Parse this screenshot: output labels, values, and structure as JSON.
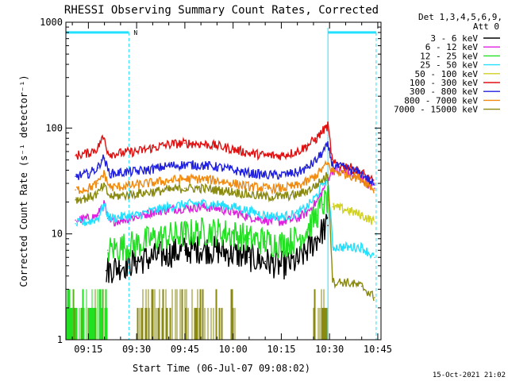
{
  "chart_data": {
    "type": "line",
    "title": "RHESSI Observing Summary Count Rates, Corrected",
    "xlabel": "Start Time (06-Jul-07 09:08:02)",
    "ylabel": "Corrected Count Rate (s⁻¹ detector⁻¹)",
    "y_scale": "log",
    "ylim": [
      1,
      1000
    ],
    "xlim_minutes_after_0900": [
      8.0,
      106.0
    ],
    "x_ticks": [
      {
        "label": "09:15",
        "minute": 15
      },
      {
        "label": "09:30",
        "minute": 30
      },
      {
        "label": "09:45",
        "minute": 45
      },
      {
        "label": "10:00",
        "minute": 60
      },
      {
        "label": "10:15",
        "minute": 75
      },
      {
        "label": "10:30",
        "minute": 90
      },
      {
        "label": "10:45",
        "minute": 105
      }
    ],
    "y_ticks": [
      {
        "label": "1",
        "value": 1
      },
      {
        "label": "10",
        "value": 10
      },
      {
        "label": "100",
        "value": 100
      },
      {
        "label": "1000",
        "value": 1000
      }
    ],
    "legend_header": [
      "Det 1,3,4,5,6,9,",
      "Att 0"
    ],
    "legend_position": "right",
    "night_flag_level": 800,
    "night_flag_label": "N",
    "night_intervals_minute": [
      [
        8.0,
        27.6
      ],
      [
        89.5,
        104.5
      ]
    ],
    "series": [
      {
        "name": "3 - 6 keV",
        "color": "#000000",
        "x": [
          20.5,
          25,
          30,
          35,
          40,
          45,
          50,
          55,
          60,
          65,
          70,
          75,
          80,
          83,
          86,
          88,
          89.5
        ],
        "y": [
          4.5,
          5,
          5.5,
          6,
          6.5,
          7,
          7.2,
          7,
          6.5,
          6,
          5.5,
          5,
          5.5,
          7,
          9,
          11,
          12
        ]
      },
      {
        "name": "6 - 12 keV",
        "color": "#e020e0",
        "x": [
          11,
          15,
          18,
          19,
          20,
          21,
          22,
          25,
          30,
          35,
          40,
          45,
          50,
          55,
          60,
          65,
          70,
          75,
          80,
          83,
          86,
          88,
          89.5,
          91,
          95,
          100,
          104
        ],
        "y": [
          13.5,
          14,
          15,
          18,
          19,
          14,
          13,
          13.5,
          14.5,
          16,
          17,
          17.5,
          18,
          17.5,
          16,
          14.5,
          13.5,
          13,
          14,
          16,
          20,
          26,
          34,
          40,
          38,
          33,
          27
        ]
      },
      {
        "name": "12 - 25 keV",
        "color": "#22e022",
        "x": [
          21,
          25,
          30,
          35,
          40,
          45,
          50,
          55,
          60,
          65,
          70,
          75,
          80,
          83,
          86,
          88,
          89.5
        ],
        "y": [
          7,
          7.5,
          8,
          9,
          9.5,
          10,
          10.5,
          10.5,
          10,
          9,
          8.5,
          8,
          9,
          11,
          15,
          19,
          21
        ]
      },
      {
        "name": "25 - 50 keV",
        "color": "#22e0ff",
        "x": [
          11,
          15,
          18,
          19,
          20,
          21,
          22,
          25,
          30,
          35,
          40,
          45,
          50,
          55,
          60,
          65,
          70,
          75,
          80,
          83,
          86,
          88,
          89.5,
          91,
          95,
          100,
          104
        ],
        "y": [
          12.5,
          13,
          14,
          17,
          19,
          15,
          14,
          14.5,
          15,
          16.5,
          18,
          19,
          19.5,
          19,
          18,
          16.5,
          15,
          14.5,
          15.5,
          18,
          23,
          30,
          33,
          7.5,
          7.5,
          7.5,
          6
        ]
      },
      {
        "name": "50 - 100 keV",
        "color": "#d0d020",
        "x": [
          91,
          95,
          100,
          104
        ],
        "y": [
          18,
          17,
          15,
          13
        ]
      },
      {
        "name": "100 - 300 keV",
        "color": "#e01010",
        "x": [
          11,
          15,
          18,
          19,
          20,
          21,
          22,
          25,
          30,
          35,
          40,
          45,
          50,
          55,
          60,
          65,
          70,
          75,
          80,
          83,
          86,
          88,
          89.5,
          91,
          95,
          100,
          104
        ],
        "y": [
          55,
          58,
          65,
          78,
          80,
          60,
          57,
          58,
          60,
          65,
          70,
          72,
          71,
          68,
          63,
          58,
          55,
          55,
          60,
          68,
          80,
          95,
          105,
          46,
          44,
          38,
          30
        ]
      },
      {
        "name": "300 - 800 keV",
        "color": "#2020e0",
        "x": [
          11,
          15,
          18,
          19,
          20,
          21,
          22,
          25,
          30,
          35,
          40,
          45,
          50,
          55,
          60,
          65,
          70,
          75,
          80,
          83,
          86,
          88,
          89.5,
          91,
          95,
          100,
          104
        ],
        "y": [
          35,
          37,
          42,
          50,
          52,
          40,
          37,
          38,
          39,
          41,
          44,
          45,
          44.5,
          43,
          40,
          37.5,
          36,
          36,
          38,
          42,
          50,
          60,
          68,
          44,
          42,
          37,
          29
        ]
      },
      {
        "name": "800 - 7000 keV",
        "color": "#f08a10",
        "x": [
          11,
          15,
          18,
          19,
          20,
          21,
          22,
          25,
          30,
          35,
          40,
          45,
          50,
          55,
          60,
          65,
          70,
          75,
          80,
          83,
          86,
          88,
          89.5,
          91,
          95,
          100,
          104
        ],
        "y": [
          26,
          27,
          30,
          35,
          37,
          30,
          27.5,
          28,
          29,
          30.5,
          32,
          33,
          33,
          32,
          30,
          28,
          27,
          27,
          28.5,
          31,
          36,
          42,
          46,
          39,
          37,
          33,
          26
        ]
      },
      {
        "name": "7000 - 15000 keV",
        "color": "#8a8a10",
        "x": [
          11,
          15,
          18,
          19,
          20,
          21,
          22,
          25,
          30,
          35,
          40,
          45,
          50,
          55,
          60,
          65,
          70,
          75,
          80,
          83,
          86,
          88,
          89.5,
          91,
          95,
          100,
          104
        ],
        "y": [
          21,
          22,
          24,
          27,
          28,
          24,
          22.5,
          23,
          24,
          25,
          26,
          27,
          27,
          26,
          25,
          23.5,
          22.5,
          22.5,
          23.5,
          25.5,
          29,
          33,
          36,
          3.5,
          3.5,
          3.2,
          2.5
        ]
      }
    ]
  },
  "footer_timestamp": "15-Oct-2021 21:02"
}
